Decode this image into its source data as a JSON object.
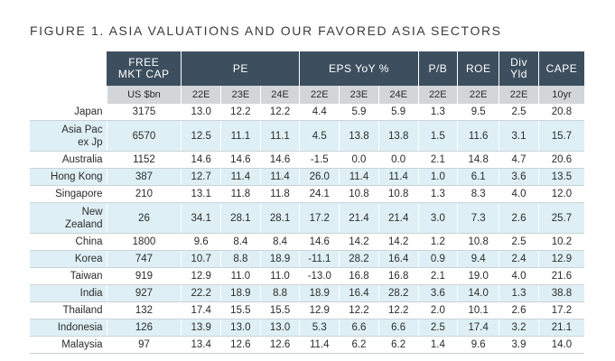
{
  "title": "FIGURE 1. ASIA VALUATIONS AND OUR FAVORED ASIA SECTORS",
  "header_groups": {
    "cap": "FREE\nMKT CAP",
    "pe": "PE",
    "eps": "EPS YoY %",
    "pb": "P/B",
    "roe": "ROE",
    "div": "Div\nYld",
    "cape": "CAPE"
  },
  "subheaders": [
    "US $bn",
    "22E",
    "23E",
    "24E",
    "22E",
    "23E",
    "24E",
    "22E",
    "22E",
    "22E",
    "10yr"
  ],
  "rows": [
    {
      "label": "Japan",
      "values": [
        "3175",
        "13.0",
        "12.2",
        "12.2",
        "4.4",
        "5.9",
        "5.9",
        "1.3",
        "9.5",
        "2.5",
        "20.8"
      ]
    },
    {
      "label": "Asia Pac\nex Jp",
      "values": [
        "6570",
        "12.5",
        "11.1",
        "11.1",
        "4.5",
        "13.8",
        "13.8",
        "1.5",
        "11.6",
        "3.1",
        "15.7"
      ]
    },
    {
      "label": "Australia",
      "values": [
        "1152",
        "14.6",
        "14.6",
        "14.6",
        "-1.5",
        "0.0",
        "0.0",
        "2.1",
        "14.8",
        "4.7",
        "20.6"
      ]
    },
    {
      "label": "Hong Kong",
      "values": [
        "387",
        "12.7",
        "11.4",
        "11.4",
        "26.0",
        "11.4",
        "11.4",
        "1.0",
        "6.1",
        "3.6",
        "13.5"
      ]
    },
    {
      "label": "Singapore",
      "values": [
        "210",
        "13.1",
        "11.8",
        "11.8",
        "24.1",
        "10.8",
        "10.8",
        "1.3",
        "8.3",
        "4.0",
        "12.0"
      ]
    },
    {
      "label": "New\nZealand",
      "values": [
        "26",
        "34.1",
        "28.1",
        "28.1",
        "17.2",
        "21.4",
        "21.4",
        "3.0",
        "7.3",
        "2.6",
        "25.7"
      ]
    },
    {
      "label": "China",
      "values": [
        "1800",
        "9.6",
        "8.4",
        "8.4",
        "14.6",
        "14.2",
        "14.2",
        "1.2",
        "10.8",
        "2.5",
        "10.2"
      ]
    },
    {
      "label": "Korea",
      "values": [
        "747",
        "10.7",
        "8.8",
        "18.9",
        "-11.1",
        "28.2",
        "16.4",
        "0.9",
        "9.4",
        "2.4",
        "12.9"
      ]
    },
    {
      "label": "Taiwan",
      "values": [
        "919",
        "12.9",
        "11.0",
        "11.0",
        "-13.0",
        "16.8",
        "16.8",
        "2.1",
        "19.0",
        "4.0",
        "21.6"
      ]
    },
    {
      "label": "India",
      "values": [
        "927",
        "22.2",
        "18.9",
        "8.8",
        "18.9",
        "16.4",
        "28.2",
        "3.6",
        "14.0",
        "1.3",
        "38.8"
      ]
    },
    {
      "label": "Thailand",
      "values": [
        "132",
        "17.4",
        "15.5",
        "15.5",
        "12.9",
        "12.2",
        "12.2",
        "2.0",
        "10.1",
        "2.6",
        "17.2"
      ]
    },
    {
      "label": "Indonesia",
      "values": [
        "126",
        "13.9",
        "13.0",
        "13.0",
        "5.3",
        "6.6",
        "6.6",
        "2.5",
        "17.4",
        "3.2",
        "21.1"
      ]
    },
    {
      "label": "Malaysia",
      "values": [
        "97",
        "13.4",
        "12.6",
        "12.6",
        "11.4",
        "6.2",
        "6.2",
        "1.4",
        "9.6",
        "3.9",
        "14.0"
      ]
    }
  ]
}
